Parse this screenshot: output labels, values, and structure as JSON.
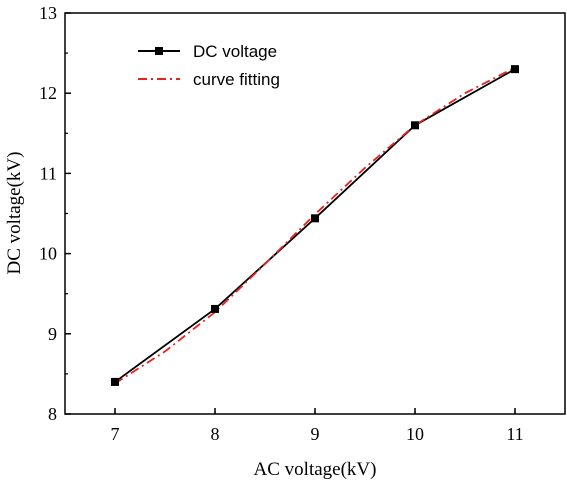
{
  "chart_data": {
    "type": "line",
    "xlabel": "AC voltage(kV)",
    "ylabel": "DC voltage(kV)",
    "xlim": [
      6.5,
      11.5
    ],
    "ylim": [
      8,
      13
    ],
    "xticks": [
      "7",
      "8",
      "9",
      "10",
      "11"
    ],
    "yticks": [
      "8",
      "9",
      "10",
      "11",
      "12",
      "13"
    ],
    "grid": false,
    "legend_position": "top-left",
    "series": [
      {
        "name": "DC voltage",
        "style": "solid-with-square-markers",
        "color": "#000000",
        "x": [
          7,
          8,
          9,
          10,
          11
        ],
        "y": [
          8.4,
          9.31,
          10.44,
          11.6,
          12.3
        ]
      },
      {
        "name": "curve fitting",
        "style": "dash-dot",
        "color": "#e8231f",
        "x": [
          7,
          7.5,
          8,
          8.5,
          9,
          9.5,
          10,
          10.5,
          11
        ],
        "y": [
          8.38,
          8.78,
          9.27,
          9.87,
          10.49,
          11.07,
          11.6,
          12.0,
          12.32
        ]
      }
    ]
  }
}
